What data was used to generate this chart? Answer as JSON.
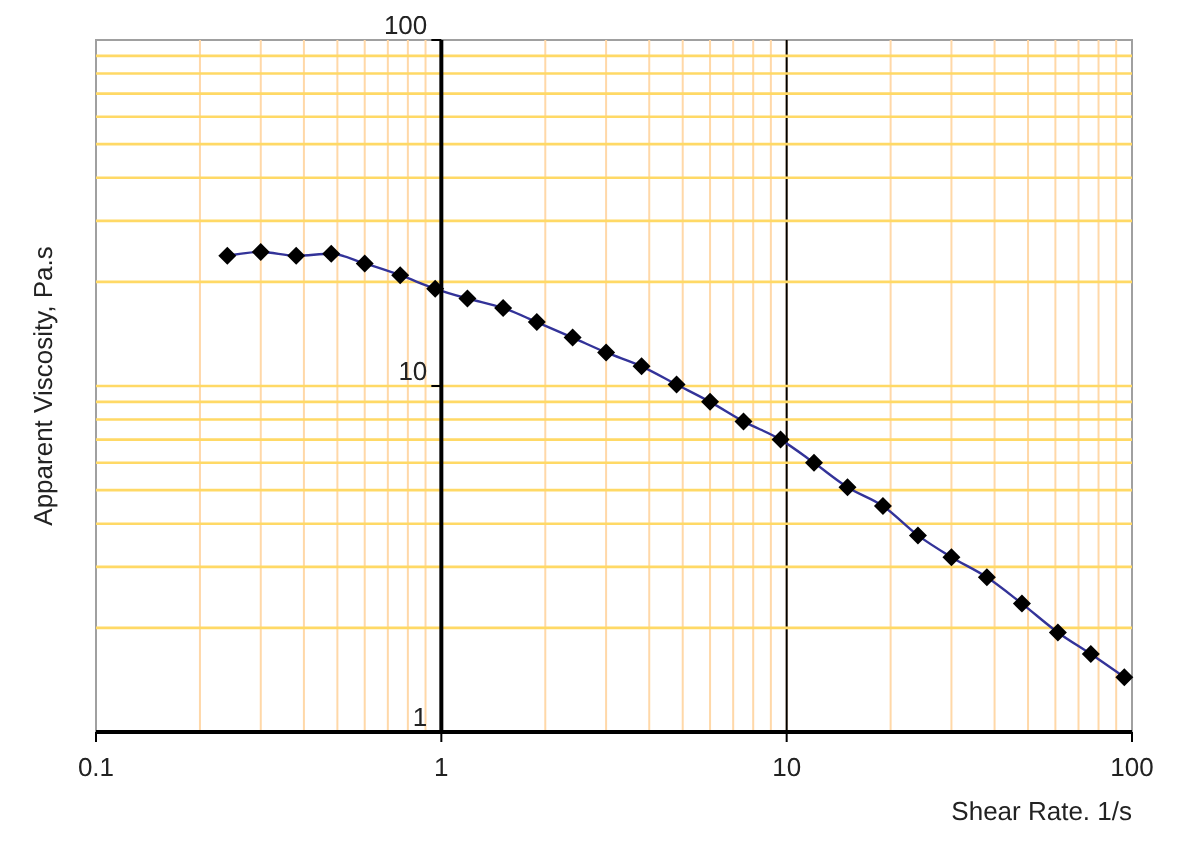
{
  "chart_data": {
    "type": "line",
    "xlabel": "Shear Rate. 1/s",
    "ylabel": "Apparent Viscosity, Pa.s",
    "log": "xy",
    "grid": true,
    "marker": "diamond",
    "line_style": "solid",
    "xlim": [
      0.1,
      100
    ],
    "xticks": [
      0.1,
      {
        "value": 0.2,
        "label": null
      },
      {
        "value": 0.3,
        "label": null
      },
      {
        "value": 0.4,
        "label": null
      },
      {
        "value": 0.5,
        "label": null
      },
      {
        "value": 0.6,
        "label": null
      },
      {
        "value": 0.7,
        "label": null
      },
      {
        "value": 0.8,
        "label": null
      },
      {
        "value": 0.9,
        "label": null
      },
      1,
      {
        "value": 2,
        "label": null
      },
      {
        "value": 3,
        "label": null
      },
      {
        "value": 4,
        "label": null
      },
      {
        "value": 5,
        "label": null
      },
      {
        "value": 6,
        "label": null
      },
      {
        "value": 7,
        "label": null
      },
      {
        "value": 8,
        "label": null
      },
      {
        "value": 9,
        "label": null
      },
      10,
      {
        "value": 20,
        "label": null
      },
      {
        "value": 30,
        "label": null
      },
      {
        "value": 40,
        "label": null
      },
      {
        "value": 50,
        "label": null
      },
      {
        "value": 60,
        "label": null
      },
      {
        "value": 70,
        "label": null
      },
      {
        "value": 80,
        "label": null
      },
      {
        "value": 90,
        "label": null
      },
      100
    ],
    "ylim": [
      1,
      100
    ],
    "yticks": [
      1,
      {
        "value": 2,
        "label": null
      },
      {
        "value": 3,
        "label": null
      },
      {
        "value": 4,
        "label": null
      },
      {
        "value": 5,
        "label": null
      },
      {
        "value": 6,
        "label": null
      },
      {
        "value": 7,
        "label": null
      },
      {
        "value": 8,
        "label": null
      },
      {
        "value": 9,
        "label": null
      },
      10,
      {
        "value": 20,
        "label": null
      },
      {
        "value": 30,
        "label": null
      },
      {
        "value": 40,
        "label": null
      },
      {
        "value": 50,
        "label": null
      },
      {
        "value": 60,
        "label": null
      },
      {
        "value": 70,
        "label": null
      },
      {
        "value": 80,
        "label": null
      },
      {
        "value": 90,
        "label": null
      },
      100
    ],
    "ref_lines": [
      {
        "axis": "x",
        "value": 10,
        "color": "#000000"
      }
    ],
    "series": [
      {
        "color": "#333399",
        "x": [
          0.24,
          0.3,
          0.38,
          0.48,
          0.6,
          0.76,
          0.96,
          1.19,
          1.51,
          1.89,
          2.4,
          3.0,
          3.8,
          4.8,
          6.0,
          7.5,
          9.6,
          12,
          15,
          19,
          24,
          30,
          38,
          48,
          61,
          76,
          95
        ],
        "values": [
          23.8,
          24.4,
          23.8,
          24.1,
          22.6,
          20.9,
          19.1,
          17.9,
          16.8,
          15.3,
          13.8,
          12.5,
          11.4,
          10.1,
          9.0,
          7.9,
          7.0,
          6.0,
          5.1,
          4.5,
          3.7,
          3.2,
          2.8,
          2.35,
          1.94,
          1.68,
          1.44
        ]
      }
    ]
  }
}
